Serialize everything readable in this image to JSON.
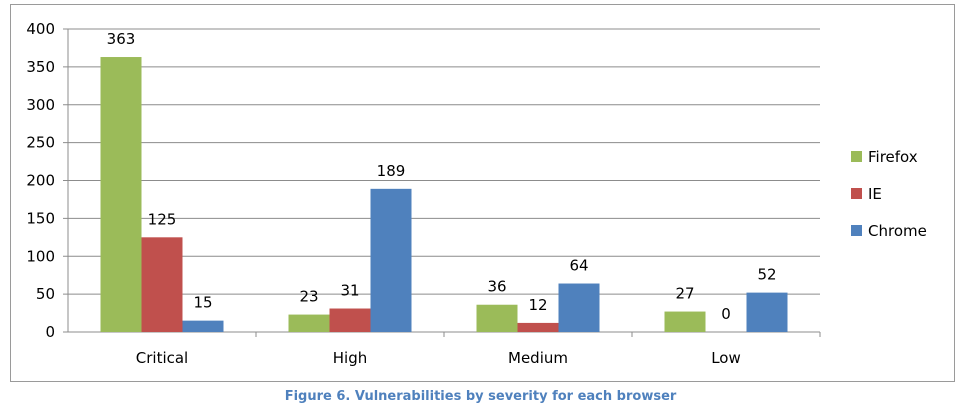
{
  "chart_data": {
    "type": "bar",
    "categories": [
      "Critical",
      "High",
      "Medium",
      "Low"
    ],
    "series": [
      {
        "name": "Firefox",
        "color": "#9bbb59",
        "values": [
          363,
          23,
          36,
          27
        ]
      },
      {
        "name": "IE",
        "color": "#c0504d",
        "values": [
          125,
          31,
          12,
          0
        ]
      },
      {
        "name": "Chrome",
        "color": "#4f81bd",
        "values": [
          15,
          189,
          64,
          52
        ]
      }
    ],
    "yticks": [
      0,
      50,
      100,
      150,
      200,
      250,
      300,
      350,
      400
    ],
    "ylim": [
      0,
      400
    ],
    "grid": true,
    "legend_position": "right",
    "data_labels": true
  },
  "caption": {
    "text": "Figure 6. Vulnerabilities by severity for each browser",
    "color": "#4f81bd"
  }
}
